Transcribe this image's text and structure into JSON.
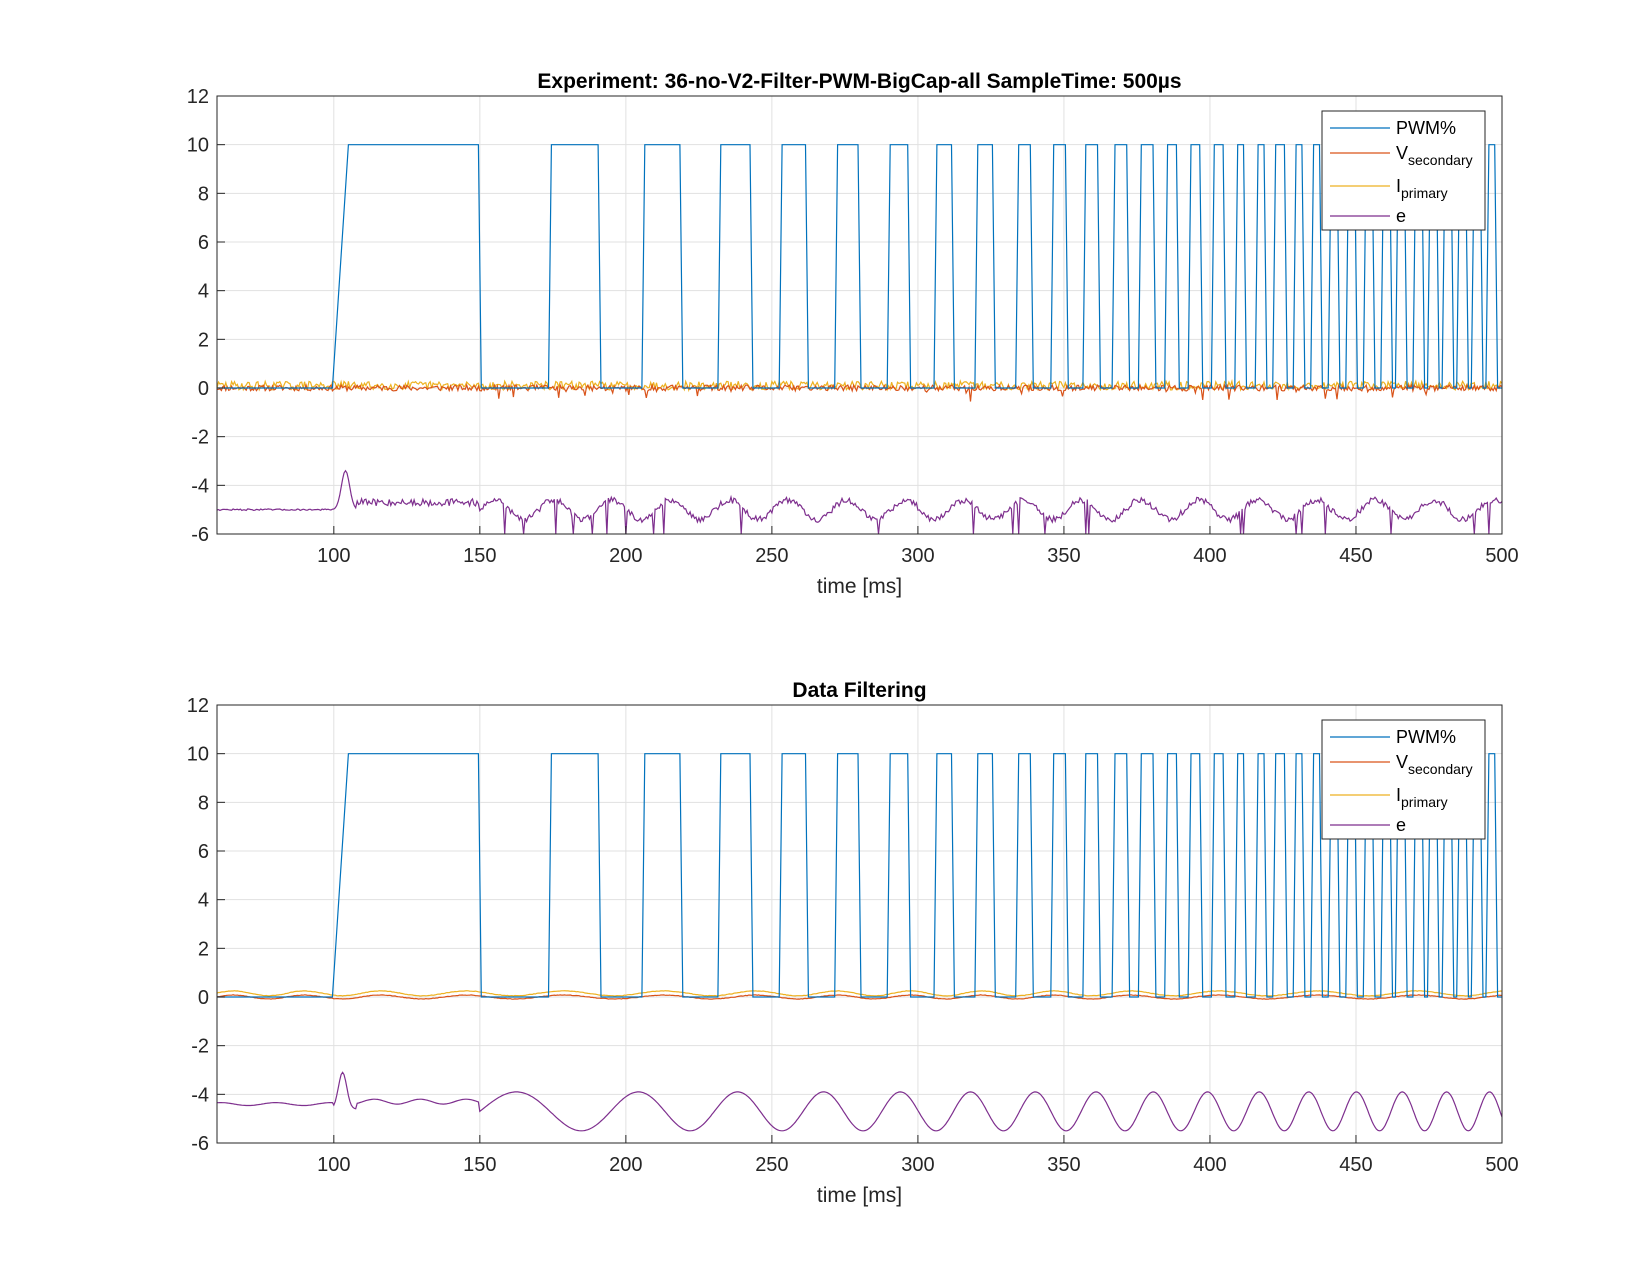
{
  "figure": {
    "background": "#ffffff"
  },
  "chart_data": [
    {
      "type": "line",
      "title": "Experiment: 36-no-V2-Filter-PWM-BigCap-all   SampleTime: 500µs",
      "xlabel": "time [ms]",
      "ylabel": "",
      "xlim": [
        60,
        500
      ],
      "ylim": [
        -6,
        12
      ],
      "xticks": [
        100,
        150,
        200,
        250,
        300,
        350,
        400,
        450,
        500
      ],
      "yticks": [
        -6,
        -4,
        -2,
        0,
        2,
        4,
        6,
        8,
        10,
        12
      ],
      "grid": true,
      "legend_position": "top-right",
      "series": [
        {
          "name": "PWM%",
          "key": "pwm",
          "color": "#0072BD",
          "values": {
            "baseline": 0,
            "ramp": [
              [
                99.5,
                0
              ],
              [
                105,
                10
              ]
            ],
            "high": 10,
            "pulses": [
              [
                105,
                150
              ],
              [
                174,
                191
              ],
              [
                206,
                219
              ],
              [
                232,
                243
              ],
              [
                253,
                262
              ],
              [
                272,
                280
              ],
              [
                290,
                297
              ],
              [
                306,
                312
              ],
              [
                320,
                326
              ],
              [
                334,
                339
              ],
              [
                346,
                351
              ],
              [
                357,
                362
              ],
              [
                367,
                372
              ],
              [
                376,
                381
              ],
              [
                385,
                389
              ],
              [
                393,
                397
              ],
              [
                401,
                405
              ],
              [
                409,
                412
              ],
              [
                416,
                419
              ],
              [
                422,
                426
              ],
              [
                429,
                432
              ],
              [
                435,
                438
              ],
              [
                441,
                444
              ],
              [
                447,
                450
              ],
              [
                453,
                456
              ],
              [
                459,
                462
              ],
              [
                464,
                467
              ],
              [
                470,
                473
              ],
              [
                475,
                478
              ],
              [
                480,
                483
              ],
              [
                485,
                488
              ],
              [
                490,
                493
              ],
              [
                495,
                498
              ]
            ]
          }
        },
        {
          "name": "V",
          "name_sub": "secondary",
          "key": "vsec",
          "color": "#D95319",
          "values": {
            "level": 0,
            "noise": 0.12,
            "spike_down": 0.5
          }
        },
        {
          "name": "I",
          "name_sub": "primary",
          "key": "ipri",
          "color": "#EDB120",
          "values": {
            "level": 0.1,
            "noise": 0.18
          }
        },
        {
          "name": "e",
          "key": "e",
          "color": "#7E2F8E",
          "values": {
            "level_before": -5.0,
            "level_after": -5.0,
            "peak": [
              104,
              -3.4
            ],
            "noise": 0.25
          }
        }
      ]
    },
    {
      "type": "line",
      "title": "Data Filtering",
      "xlabel": "time [ms]",
      "ylabel": "",
      "xlim": [
        60,
        500
      ],
      "ylim": [
        -6,
        12
      ],
      "xticks": [
        100,
        150,
        200,
        250,
        300,
        350,
        400,
        450,
        500
      ],
      "yticks": [
        -6,
        -4,
        -2,
        0,
        2,
        4,
        6,
        8,
        10,
        12
      ],
      "grid": true,
      "legend_position": "top-right",
      "series": [
        {
          "name": "PWM%",
          "key": "pwm",
          "color": "#0072BD",
          "values": "same as upper plot"
        },
        {
          "name": "V",
          "name_sub": "secondary",
          "key": "vsec",
          "color": "#D95319",
          "values": {
            "level": 0,
            "amplitude": 0.08
          }
        },
        {
          "name": "I",
          "name_sub": "primary",
          "key": "ipri",
          "color": "#EDB120",
          "values": {
            "level": 0.15,
            "amplitude": 0.1
          }
        },
        {
          "name": "e",
          "key": "e",
          "color": "#7E2F8E",
          "values": {
            "level_before": -4.4,
            "level_after": -4.6,
            "peak": [
              103,
              -3.1
            ],
            "amplitude": 0.8
          }
        }
      ]
    }
  ]
}
